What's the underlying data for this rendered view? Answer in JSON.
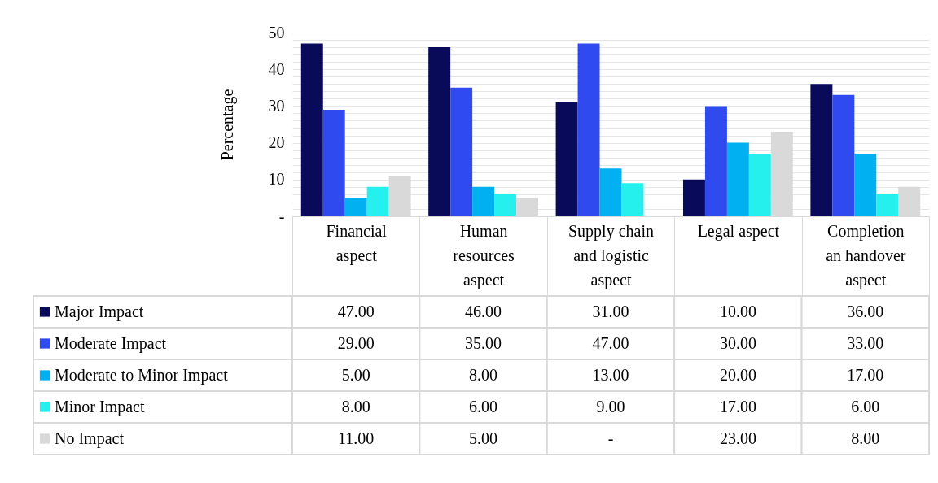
{
  "chart_data": {
    "type": "bar",
    "ylabel": "Percentage",
    "categories": [
      "Financial aspect",
      "Human resources aspect",
      "Supply chain and logistic aspect",
      "Legal aspect",
      "Completion an handover aspect"
    ],
    "series": [
      {
        "name": "Major Impact",
        "color": "#0a0a5a",
        "values": [
          47,
          46,
          31,
          10,
          36
        ],
        "value_labels": [
          "47.00",
          "46.00",
          "31.00",
          "10.00",
          "36.00"
        ]
      },
      {
        "name": "Moderate Impact",
        "color": "#2f4bef",
        "values": [
          29,
          35,
          47,
          30,
          33
        ],
        "value_labels": [
          "29.00",
          "35.00",
          "47.00",
          "30.00",
          "33.00"
        ]
      },
      {
        "name": "Moderate to Minor Impact",
        "color": "#00b0f0",
        "values": [
          5,
          8,
          13,
          20,
          17
        ],
        "value_labels": [
          "5.00",
          "8.00",
          "13.00",
          "20.00",
          "17.00"
        ]
      },
      {
        "name": "Minor Impact",
        "color": "#25f0ee",
        "values": [
          8,
          6,
          9,
          17,
          6
        ],
        "value_labels": [
          "8.00",
          "6.00",
          "9.00",
          "17.00",
          "6.00"
        ]
      },
      {
        "name": "No Impact",
        "color": "#d9d9d9",
        "values": [
          11,
          5,
          null,
          23,
          8
        ],
        "value_labels": [
          "11.00",
          "5.00",
          "-",
          "23.00",
          "8.00"
        ]
      }
    ],
    "ylim": [
      0,
      50
    ],
    "yticks": [
      {
        "value": 0,
        "label": "-"
      },
      {
        "value": 2,
        "label": null
      },
      {
        "value": 4,
        "label": null
      },
      {
        "value": 6,
        "label": null
      },
      {
        "value": 8,
        "label": null
      },
      10,
      {
        "value": 12,
        "label": null
      },
      {
        "value": 14,
        "label": null
      },
      {
        "value": 16,
        "label": null
      },
      {
        "value": 18,
        "label": null
      },
      20,
      {
        "value": 22,
        "label": null
      },
      {
        "value": 24,
        "label": null
      },
      {
        "value": 26,
        "label": null
      },
      {
        "value": 28,
        "label": null
      },
      30,
      {
        "value": 32,
        "label": null
      },
      {
        "value": 34,
        "label": null
      },
      {
        "value": 36,
        "label": null
      },
      {
        "value": 38,
        "label": null
      },
      40,
      {
        "value": 42,
        "label": null
      },
      {
        "value": 44,
        "label": null
      },
      {
        "value": 46,
        "label": null
      },
      {
        "value": 48,
        "label": null
      },
      50
    ],
    "grid": "y",
    "legend": "bottom"
  }
}
